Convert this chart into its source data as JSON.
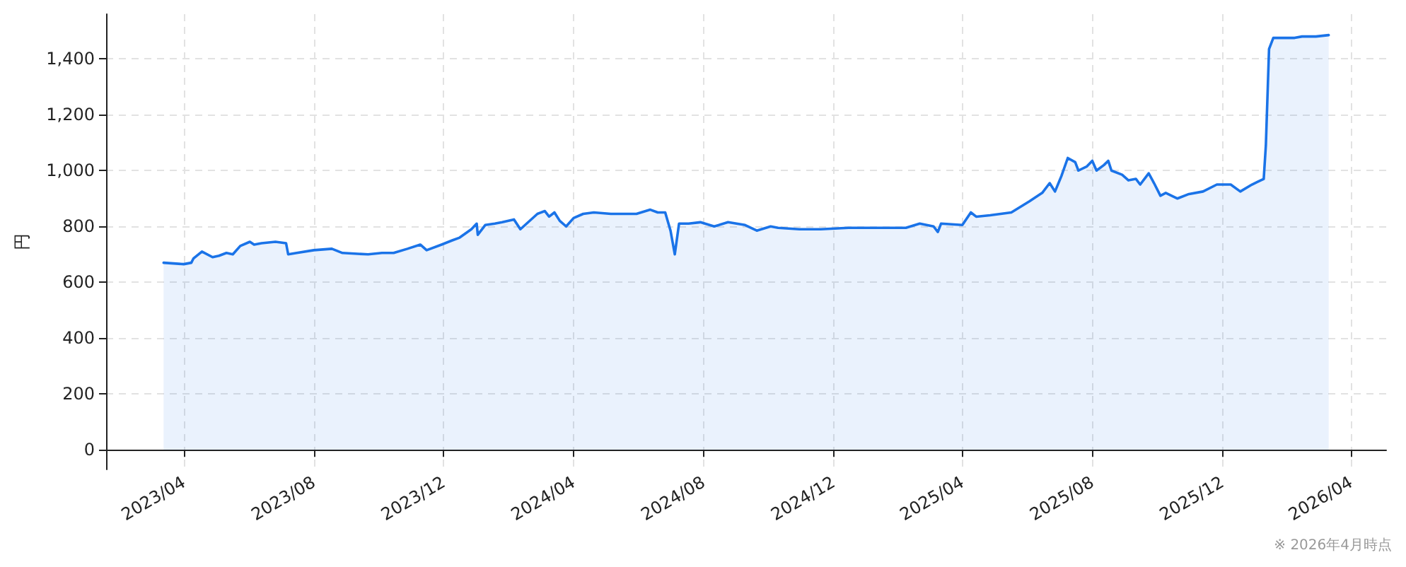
{
  "chart_data": {
    "type": "area",
    "ylabel": "円",
    "annotations": [
      "※ 2026年4月時点"
    ],
    "x": [
      "2023-03-13",
      "2023-04-01",
      "2023-04-08",
      "2023-04-10",
      "2023-04-18",
      "2023-04-28",
      "2023-05-04",
      "2023-05-11",
      "2023-05-17",
      "2023-05-24",
      "2023-06-02",
      "2023-06-06",
      "2023-06-13",
      "2023-06-26",
      "2023-07-06",
      "2023-07-08",
      "2023-07-16",
      "2023-08-01",
      "2023-08-18",
      "2023-08-28",
      "2023-09-21",
      "2023-10-04",
      "2023-10-15",
      "2023-10-28",
      "2023-11-09",
      "2023-11-15",
      "2023-11-29",
      "2023-12-09",
      "2023-12-16",
      "2023-12-27",
      "2024-01-01",
      "2024-01-02",
      "2024-01-09",
      "2024-01-18",
      "2024-01-25",
      "2024-02-05",
      "2024-02-11",
      "2024-02-27",
      "2024-03-05",
      "2024-03-09",
      "2024-03-14",
      "2024-03-19",
      "2024-03-25",
      "2024-04-01",
      "2024-04-10",
      "2024-04-20",
      "2024-05-06",
      "2024-05-30",
      "2024-06-12",
      "2024-06-19",
      "2024-06-26",
      "2024-07-01",
      "2024-07-05",
      "2024-07-09",
      "2024-07-18",
      "2024-07-29",
      "2024-08-11",
      "2024-08-24",
      "2024-09-09",
      "2024-09-20",
      "2024-10-03",
      "2024-10-10",
      "2024-10-30",
      "2024-11-19",
      "2024-12-15",
      "2025-01-11",
      "2025-02-07",
      "2025-02-20",
      "2025-03-05",
      "2025-03-09",
      "2025-03-12",
      "2025-04-01",
      "2025-04-09",
      "2025-04-14",
      "2025-04-27",
      "2025-05-17",
      "2025-06-03",
      "2025-06-15",
      "2025-06-22",
      "2025-06-27",
      "2025-07-03",
      "2025-07-09",
      "2025-07-16",
      "2025-07-19",
      "2025-07-27",
      "2025-08-01",
      "2025-08-05",
      "2025-08-12",
      "2025-08-16",
      "2025-08-19",
      "2025-08-29",
      "2025-09-04",
      "2025-09-11",
      "2025-09-15",
      "2025-09-23",
      "2025-09-28",
      "2025-10-04",
      "2025-10-09",
      "2025-10-20",
      "2025-10-30",
      "2025-11-13",
      "2025-11-26",
      "2025-12-09",
      "2025-12-18",
      "2025-12-29",
      "2026-01-09",
      "2026-01-11",
      "2026-01-14",
      "2026-01-18",
      "2026-02-07",
      "2026-02-14",
      "2026-02-27",
      "2026-03-11"
    ],
    "series": [
      {
        "color": "#1a73e8",
        "values": [
          670,
          665,
          670,
          685,
          710,
          690,
          695,
          705,
          700,
          730,
          745,
          735,
          740,
          745,
          740,
          700,
          705,
          715,
          720,
          705,
          700,
          705,
          705,
          720,
          735,
          715,
          735,
          750,
          760,
          790,
          810,
          770,
          805,
          810,
          815,
          825,
          790,
          845,
          855,
          835,
          850,
          820,
          800,
          830,
          845,
          850,
          845,
          845,
          860,
          850,
          850,
          785,
          700,
          810,
          810,
          815,
          800,
          815,
          805,
          785,
          800,
          795,
          790,
          790,
          795,
          795,
          795,
          810,
          800,
          780,
          810,
          805,
          850,
          835,
          840,
          850,
          890,
          920,
          955,
          925,
          980,
          1045,
          1030,
          1000,
          1015,
          1035,
          1000,
          1020,
          1035,
          1000,
          985,
          965,
          970,
          950,
          990,
          955,
          910,
          920,
          900,
          915,
          925,
          950,
          950,
          925,
          950,
          970,
          1090,
          1435,
          1475,
          1475,
          1480,
          1480,
          1485
        ]
      }
    ],
    "xlim": [
      "2023-01-18",
      "2026-05-04"
    ],
    "xticks": [
      {
        "value": "2023-04-01",
        "label": "2023/04"
      },
      {
        "value": "2023-08-01",
        "label": "2023/08"
      },
      {
        "value": "2023-12-01",
        "label": "2023/12"
      },
      {
        "value": "2024-04-01",
        "label": "2024/04"
      },
      {
        "value": "2024-08-01",
        "label": "2024/08"
      },
      {
        "value": "2024-12-01",
        "label": "2024/12"
      },
      {
        "value": "2025-04-01",
        "label": "2025/04"
      },
      {
        "value": "2025-08-01",
        "label": "2025/08"
      },
      {
        "value": "2025-12-01",
        "label": "2025/12"
      },
      {
        "value": "2026-04-01",
        "label": "2026/04"
      }
    ],
    "ylim": [
      -70,
      1560
    ],
    "yticks": [
      0,
      200,
      400,
      600,
      800,
      {
        "value": 1000,
        "label": "1,000"
      },
      {
        "value": 1200,
        "label": "1,200"
      },
      {
        "value": 1400,
        "label": "1,400"
      }
    ],
    "grid": true,
    "marker": "none",
    "line_style": "solid"
  }
}
